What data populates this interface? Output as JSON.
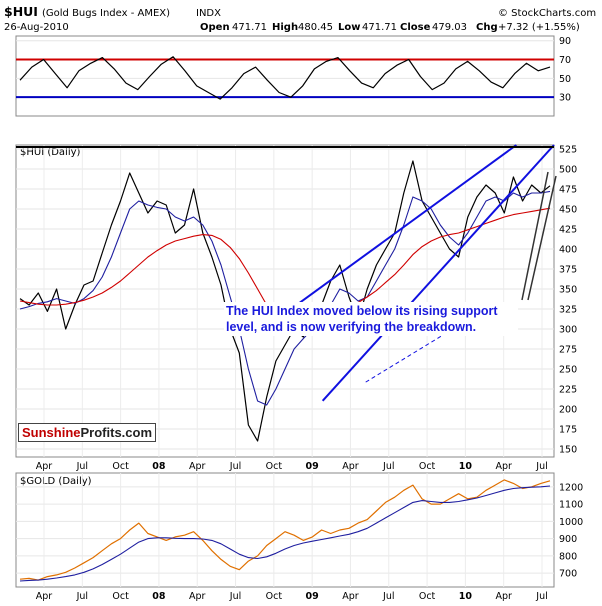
{
  "header": {
    "symbol": "$HUI",
    "name": "(Gold Bugs Index - AMEX)",
    "exchange": "INDX",
    "date": "26-Aug-2010",
    "source": "© StockCharts.com",
    "open_label": "Open",
    "open": "471.71",
    "high_label": "High",
    "high": "480.45",
    "low_label": "Low",
    "low": "471.71",
    "close_label": "Close",
    "close": "479.03",
    "chg_label": "Chg",
    "chg": "+7.32 (+1.55%)"
  },
  "brand": {
    "part1": "Sunshine",
    "part2": "Profits.com"
  },
  "annotation": "The HUI Index moved below its rising support level, and is now verifying the breakdown.",
  "colors": {
    "price": "#000000",
    "ma_short": "#1f1fa0",
    "ma_long": "#d00000",
    "trend": "#1010e0",
    "gold": "#e07000"
  },
  "chart_data": [
    {
      "type": "line",
      "panel": "RSI",
      "title": "",
      "ylim": [
        10,
        95
      ],
      "yticks": [
        30,
        50,
        70,
        90
      ],
      "reference_lines": [
        {
          "y": 70,
          "color": "#d00000"
        },
        {
          "y": 30,
          "color": "#0000c0"
        }
      ],
      "series": [
        {
          "values": [
            48,
            62,
            70,
            55,
            40,
            58,
            66,
            72,
            60,
            45,
            38,
            52,
            65,
            73,
            58,
            42,
            35,
            28,
            40,
            55,
            62,
            48,
            35,
            30,
            42,
            60,
            68,
            72,
            58,
            45,
            40,
            55,
            64,
            70,
            52,
            38,
            45,
            60,
            68,
            58,
            46,
            40,
            55,
            66,
            58,
            62
          ]
        }
      ]
    },
    {
      "type": "line",
      "panel": "HUI",
      "label": "$HUI (Daily)",
      "ylim": [
        140,
        530
      ],
      "yticks": [
        150,
        175,
        200,
        225,
        250,
        275,
        300,
        325,
        350,
        375,
        400,
        425,
        450,
        475,
        500,
        525
      ],
      "x_labels": [
        "Apr",
        "Jul",
        "Oct",
        "08",
        "Apr",
        "Jul",
        "Oct",
        "09",
        "Apr",
        "Jul",
        "Oct",
        "10",
        "Apr",
        "Jul"
      ],
      "series": [
        {
          "values": [
            338,
            330,
            345,
            322,
            350,
            300,
            330,
            355,
            360,
            395,
            430,
            460,
            495,
            470,
            445,
            460,
            455,
            420,
            430,
            475,
            420,
            390,
            355,
            300,
            270,
            180,
            160,
            215,
            260,
            280,
            300,
            290,
            320,
            330,
            360,
            380,
            340,
            310,
            350,
            380,
            400,
            420,
            470,
            510,
            460,
            440,
            420,
            400,
            390,
            440,
            465,
            480,
            470,
            445,
            490,
            460,
            480,
            470,
            479
          ]
        },
        {
          "values": [
            325,
            328,
            332,
            334,
            338,
            335,
            332,
            338,
            348,
            365,
            390,
            420,
            450,
            460,
            455,
            452,
            450,
            440,
            435,
            440,
            430,
            410,
            380,
            340,
            300,
            250,
            210,
            205,
            225,
            250,
            275,
            288,
            300,
            315,
            330,
            350,
            345,
            335,
            340,
            360,
            380,
            400,
            430,
            465,
            460,
            450,
            430,
            415,
            405,
            420,
            440,
            460,
            465,
            460,
            470,
            465,
            470,
            470,
            472
          ]
        },
        {
          "values": [
            335,
            333,
            331,
            330,
            330,
            331,
            333,
            336,
            340,
            345,
            352,
            360,
            370,
            380,
            390,
            398,
            405,
            410,
            413,
            416,
            418,
            417,
            412,
            402,
            388,
            370,
            350,
            330,
            315,
            303,
            296,
            292,
            295,
            300,
            308,
            318,
            326,
            333,
            340,
            348,
            358,
            368,
            380,
            393,
            403,
            410,
            415,
            418,
            420,
            424,
            428,
            432,
            436,
            440,
            443,
            445,
            447,
            449,
            451
          ]
        }
      ],
      "trendlines": [
        {
          "x0": 0.5,
          "y0": 0.54,
          "x1": 0.93,
          "y1": 0.0
        },
        {
          "x0": 0.57,
          "y0": 0.82,
          "x1": 1.0,
          "y1": 0.0
        },
        {
          "x0": 0.65,
          "y0": 0.76,
          "x1": 0.85,
          "y1": 0.55
        }
      ]
    },
    {
      "type": "line",
      "panel": "GOLD",
      "label": "$GOLD (Daily)",
      "ylim": [
        620,
        1280
      ],
      "yticks": [
        700,
        800,
        900,
        1000,
        1100,
        1200
      ],
      "x_labels": [
        "Apr",
        "Jul",
        "Oct",
        "08",
        "Apr",
        "Jul",
        "Oct",
        "09",
        "Apr",
        "Jul",
        "Oct",
        "10",
        "Apr",
        "Jul"
      ],
      "series": [
        {
          "values": [
            665,
            670,
            660,
            680,
            690,
            705,
            730,
            760,
            790,
            830,
            870,
            900,
            950,
            990,
            930,
            910,
            890,
            910,
            920,
            940,
            890,
            830,
            780,
            740,
            720,
            770,
            800,
            860,
            900,
            940,
            920,
            890,
            910,
            950,
            930,
            950,
            960,
            990,
            1010,
            1060,
            1110,
            1140,
            1180,
            1210,
            1130,
            1100,
            1100,
            1130,
            1160,
            1130,
            1140,
            1180,
            1210,
            1240,
            1220,
            1190,
            1200,
            1220,
            1235
          ]
        },
        {
          "values": [
            655,
            658,
            660,
            665,
            672,
            680,
            690,
            705,
            725,
            750,
            780,
            810,
            845,
            880,
            900,
            905,
            905,
            902,
            900,
            900,
            898,
            890,
            870,
            840,
            810,
            790,
            785,
            795,
            815,
            840,
            860,
            875,
            885,
            895,
            905,
            915,
            925,
            940,
            960,
            990,
            1020,
            1050,
            1080,
            1110,
            1120,
            1115,
            1110,
            1110,
            1115,
            1125,
            1135,
            1150,
            1165,
            1180,
            1190,
            1195,
            1198,
            1200,
            1205
          ]
        }
      ]
    }
  ]
}
